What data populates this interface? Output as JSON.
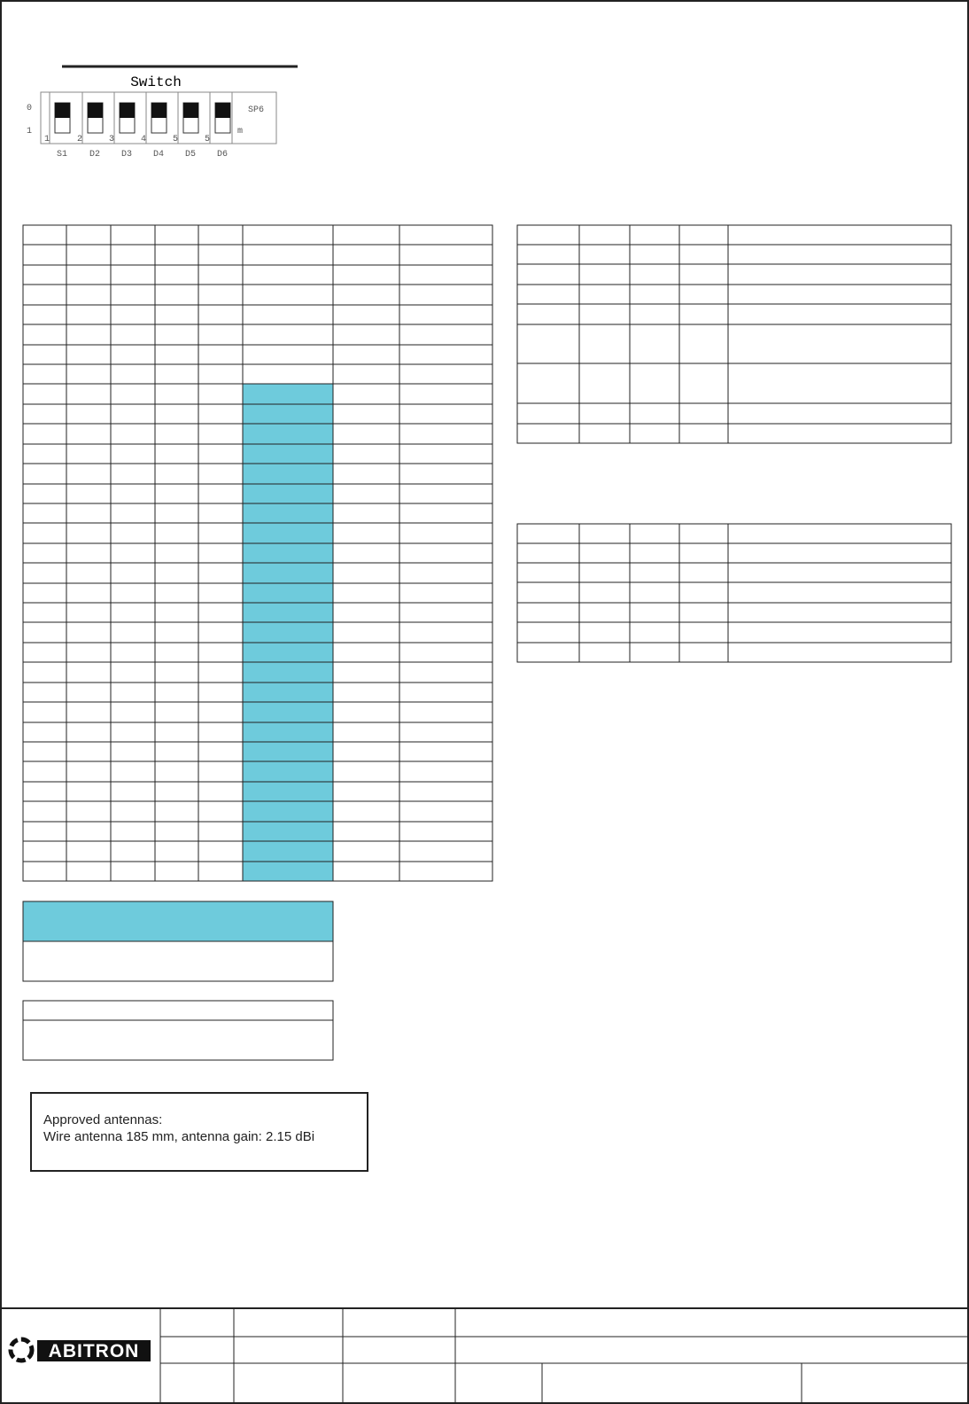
{
  "switch": {
    "title": "Switch",
    "row_labels": [
      "0",
      "1"
    ],
    "numbers": [
      "1",
      "2",
      "3",
      "4",
      "5",
      "5"
    ],
    "labels": [
      "S1",
      "D2",
      "D3",
      "D4",
      "D5",
      "D6"
    ],
    "side_label": "SP6",
    "side_mark": "m"
  },
  "antenna_note": {
    "heading": "Approved antennas:",
    "text": "Wire antenna 185 mm, antenna gain: 2.15 dBi"
  },
  "footer": {
    "logo": "ABITRON"
  }
}
